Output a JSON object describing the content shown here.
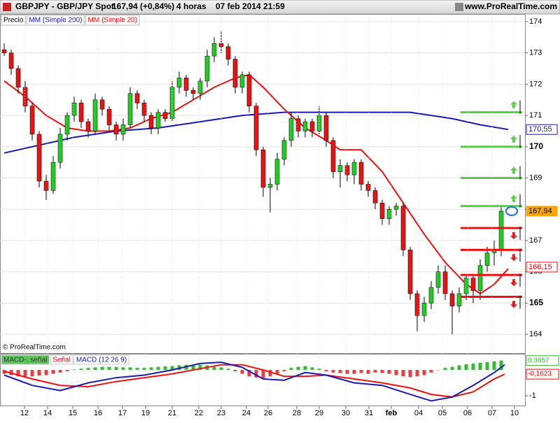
{
  "header": {
    "symbol": "GBPJPY - GBP/JPY Spot",
    "price": "167,94 (+0,84%)",
    "period": "4 horas",
    "datetime": "07 feb 2014 21:59",
    "site": "www.ProRealTime.com"
  },
  "copyright": "© ProRealTime.com",
  "chart_data": [
    {
      "type": "candlestick",
      "price_label": "Precio",
      "up_color": "#22cc22",
      "down_color": "#ee1111",
      "grid": true,
      "xlim": [
        -0.6,
        74.4
      ],
      "ylim": [
        163.4,
        174.2
      ],
      "yticks": [
        164,
        165,
        166,
        167,
        168,
        169,
        170,
        171,
        172,
        173,
        174
      ],
      "open": [
        173.1,
        173.0,
        172.5,
        171.9,
        171.3,
        170.4,
        168.9,
        168.6,
        169.5,
        170.4,
        171.0,
        171.4,
        170.8,
        170.5,
        171.5,
        171.2,
        170.7,
        170.4,
        170.7,
        171.7,
        171.4,
        171.0,
        170.6,
        171.1,
        170.9,
        171.9,
        172.2,
        171.8,
        171.7,
        172.1,
        172.9,
        173.3,
        173.2,
        172.8,
        171.9,
        172.3,
        171.3,
        169.9,
        168.7,
        168.8,
        169.6,
        170.2,
        170.9,
        170.5,
        170.8,
        170.5,
        171.0,
        170.2,
        169.2,
        169.4,
        169.1,
        169.5,
        168.8,
        168.6,
        168.2,
        167.7,
        168.0,
        168.1,
        166.7,
        165.3,
        164.6,
        165.0,
        165.5,
        166.0,
        165.3,
        164.9,
        165.3,
        165.8,
        165.4,
        166.2,
        166.6,
        166.7
      ],
      "high": [
        173.3,
        173.1,
        172.6,
        172.1,
        171.4,
        170.5,
        169.1,
        169.7,
        170.6,
        171.1,
        171.6,
        171.5,
        170.9,
        171.7,
        171.6,
        171.3,
        170.8,
        170.9,
        171.9,
        171.8,
        171.5,
        171.1,
        171.2,
        171.2,
        172.1,
        172.4,
        172.3,
        171.9,
        172.2,
        173.1,
        173.5,
        173.7,
        173.3,
        172.9,
        172.4,
        172.4,
        171.4,
        170.0,
        169.0,
        169.8,
        170.3,
        171.1,
        171.0,
        170.9,
        170.9,
        171.3,
        171.1,
        170.3,
        169.6,
        169.5,
        169.6,
        169.6,
        168.9,
        168.7,
        168.3,
        168.1,
        168.2,
        168.2,
        166.8,
        165.4,
        165.2,
        165.7,
        166.2,
        166.2,
        165.4,
        165.5,
        165.9,
        165.9,
        166.4,
        166.8,
        167.0,
        168.1
      ],
      "low": [
        172.9,
        172.3,
        171.7,
        171.1,
        170.2,
        168.7,
        168.3,
        168.5,
        169.3,
        170.2,
        170.8,
        170.6,
        170.3,
        170.4,
        171.0,
        170.5,
        170.2,
        170.2,
        170.6,
        171.2,
        170.8,
        170.4,
        170.4,
        170.8,
        170.8,
        171.7,
        171.6,
        171.5,
        171.5,
        171.9,
        172.7,
        173.0,
        172.6,
        171.7,
        171.7,
        171.1,
        169.7,
        168.4,
        167.9,
        168.6,
        169.4,
        170.0,
        170.3,
        170.3,
        170.3,
        170.4,
        170.0,
        169.0,
        168.7,
        168.9,
        168.8,
        168.6,
        168.4,
        168.0,
        167.5,
        167.5,
        167.8,
        166.5,
        165.1,
        164.1,
        164.4,
        164.8,
        165.3,
        165.1,
        164.0,
        164.7,
        165.1,
        165.0,
        165.1,
        166.0,
        166.2,
        166.5
      ],
      "close": [
        173.0,
        172.5,
        171.9,
        171.3,
        170.4,
        168.9,
        168.6,
        169.5,
        170.4,
        171.0,
        171.4,
        170.8,
        170.5,
        171.5,
        171.2,
        170.7,
        170.4,
        170.7,
        171.7,
        171.4,
        171.0,
        170.6,
        171.1,
        170.9,
        171.9,
        172.2,
        171.8,
        171.7,
        172.1,
        172.9,
        173.3,
        173.2,
        172.8,
        171.9,
        172.3,
        171.3,
        169.9,
        168.7,
        168.8,
        169.6,
        170.2,
        170.9,
        170.5,
        170.8,
        170.5,
        171.0,
        170.2,
        169.2,
        169.4,
        169.1,
        169.5,
        168.8,
        168.6,
        168.2,
        167.7,
        168.0,
        168.1,
        166.7,
        165.3,
        164.6,
        165.0,
        165.5,
        166.0,
        165.3,
        164.9,
        165.3,
        165.8,
        165.4,
        166.2,
        166.6,
        166.7,
        167.94
      ],
      "series": [
        {
          "name": "MM (Simple 200)",
          "color": "#1a1ab4",
          "x": [
            0,
            10,
            16,
            22,
            28,
            34,
            40,
            46,
            52,
            58,
            64,
            68,
            72
          ],
          "values": [
            169.8,
            170.3,
            170.5,
            170.6,
            170.8,
            171.0,
            171.1,
            171.1,
            171.1,
            171.1,
            170.9,
            170.7,
            170.55
          ]
        },
        {
          "name": "MM (Simple 20)",
          "color": "#ee1111",
          "x": [
            0,
            3,
            6,
            9,
            12,
            15,
            18,
            21,
            24,
            27,
            30,
            33,
            35,
            37,
            40,
            43,
            46,
            48,
            51,
            54,
            57,
            60,
            63,
            66,
            68,
            70,
            72
          ],
          "values": [
            172.1,
            171.6,
            171.0,
            170.6,
            170.5,
            170.5,
            170.6,
            170.9,
            171.1,
            171.5,
            171.9,
            172.2,
            172.3,
            171.9,
            171.2,
            170.6,
            170.2,
            169.9,
            169.9,
            169.2,
            168.2,
            167.2,
            166.3,
            165.6,
            165.3,
            165.6,
            166.1
          ]
        }
      ],
      "levels": [
        {
          "value": 171.1,
          "color": "#55cc44"
        },
        {
          "value": 170.0,
          "color": "#55cc44"
        },
        {
          "value": 169.0,
          "color": "#55cc44"
        },
        {
          "value": 168.1,
          "color": "#55cc44"
        },
        {
          "value": 167.4,
          "color": "#ee1111"
        },
        {
          "value": 166.7,
          "color": "#ee1111"
        },
        {
          "value": 165.9,
          "color": "#ee1111"
        },
        {
          "value": 165.2,
          "color": "#ee1111"
        }
      ],
      "tags": [
        {
          "value": 170.55,
          "label": "170,55",
          "color": "#1a1ab4",
          "filled": false
        },
        {
          "value": 167.94,
          "label": "167,94",
          "color": "#ffa500",
          "filled": true
        },
        {
          "value": 166.15,
          "label": "166,15",
          "color": "#ee1111",
          "filled": false
        }
      ]
    },
    {
      "type": "macd",
      "xlim": [
        -0.6,
        74.4
      ],
      "ylim": [
        -1.38,
        0.6
      ],
      "yticks": [
        -1
      ],
      "histogram": {
        "name": "MACD-, señal",
        "color": "#33bb33",
        "down_color": "#dd4444",
        "values": [
          -0.15,
          -0.2,
          -0.25,
          -0.25,
          -0.25,
          -0.22,
          -0.2,
          -0.15,
          -0.1,
          -0.05,
          0.02,
          0.05,
          0.08,
          0.1,
          0.12,
          0.12,
          0.12,
          0.1,
          0.1,
          0.08,
          0.08,
          0.1,
          0.12,
          0.14,
          0.15,
          0.18,
          0.2,
          0.2,
          0.2,
          0.18,
          0.12,
          0.1,
          0.05,
          -0.05,
          -0.15,
          -0.25,
          -0.3,
          -0.32,
          -0.25,
          -0.15,
          -0.05,
          0.08,
          0.12,
          0.15,
          0.1,
          0.05,
          -0.05,
          -0.1,
          -0.12,
          -0.15,
          -0.15,
          -0.12,
          -0.15,
          -0.1,
          -0.12,
          -0.15,
          -0.2,
          -0.25,
          -0.28,
          -0.25,
          -0.2,
          -0.1,
          0.0,
          0.08,
          0.12,
          0.18,
          0.22,
          0.25,
          0.28,
          0.3,
          0.33,
          0.3657
        ]
      },
      "series": [
        {
          "name": "Señal",
          "color": "#ee1111",
          "x": [
            0,
            4,
            8,
            12,
            16,
            20,
            24,
            28,
            31,
            34,
            37,
            40,
            43,
            46,
            50,
            54,
            58,
            61,
            64,
            67,
            70,
            71.5
          ],
          "values": [
            -0.05,
            -0.35,
            -0.6,
            -0.65,
            -0.45,
            -0.3,
            -0.15,
            0.05,
            0.2,
            0.2,
            0.0,
            -0.25,
            -0.25,
            -0.2,
            -0.35,
            -0.5,
            -0.7,
            -0.95,
            -1.05,
            -0.85,
            -0.35,
            -0.1623
          ]
        },
        {
          "name": "MACD (12 26 9)",
          "color": "#1a1ab4",
          "x": [
            0,
            4,
            8,
            12,
            16,
            20,
            24,
            28,
            31,
            34,
            37,
            40,
            43,
            46,
            50,
            54,
            58,
            61,
            64,
            67,
            70,
            71.5
          ],
          "values": [
            -0.2,
            -0.6,
            -0.8,
            -0.5,
            -0.3,
            -0.2,
            0.0,
            0.25,
            0.3,
            0.1,
            -0.35,
            -0.4,
            -0.1,
            -0.2,
            -0.5,
            -0.6,
            -0.95,
            -1.2,
            -1.05,
            -0.6,
            -0.1,
            0.2
          ]
        }
      ],
      "tags": [
        {
          "value": 0.3657,
          "label": "0,3657",
          "color": "#33bb33"
        },
        {
          "value": -0.1623,
          "label": "-0,1623",
          "color": "#ee1111"
        }
      ],
      "xticks": [
        {
          "value": 2.9,
          "label": "12"
        },
        {
          "value": 6.2,
          "label": "14"
        },
        {
          "value": 9.8,
          "label": "15"
        },
        {
          "value": 13.4,
          "label": "16"
        },
        {
          "value": 16.9,
          "label": "17"
        },
        {
          "value": 20.2,
          "label": "19"
        },
        {
          "value": 24,
          "label": "21"
        },
        {
          "value": 27.8,
          "label": "22"
        },
        {
          "value": 31,
          "label": "23"
        },
        {
          "value": 34.6,
          "label": "24"
        },
        {
          "value": 37.7,
          "label": "26"
        },
        {
          "value": 41.8,
          "label": "28"
        },
        {
          "value": 45,
          "label": "29"
        },
        {
          "value": 48.8,
          "label": "30"
        },
        {
          "value": 52.1,
          "label": "31"
        },
        {
          "value": 55.3,
          "label": "feb"
        },
        {
          "value": 59.2,
          "label": "04"
        },
        {
          "value": 62.6,
          "label": "05"
        },
        {
          "value": 66.2,
          "label": "06"
        },
        {
          "value": 69.7,
          "label": "07"
        },
        {
          "value": 72.9,
          "label": "10"
        }
      ]
    }
  ]
}
